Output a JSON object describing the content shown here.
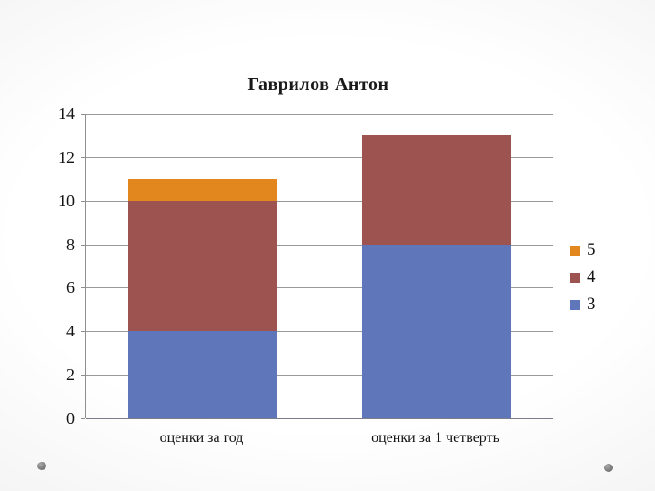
{
  "slide": {
    "title": "Гаврилов Антон"
  },
  "chart_data": {
    "type": "bar",
    "subtype": "stacked-vertical",
    "title": "Гаврилов Антон",
    "categories": [
      "оценки за год",
      "оценки за 1 четверть"
    ],
    "series": [
      {
        "name": "3",
        "color": "#6076ba",
        "values": [
          4,
          8
        ]
      },
      {
        "name": "4",
        "color": "#9d534f",
        "values": [
          6,
          5
        ]
      },
      {
        "name": "5",
        "color": "#e2861e",
        "values": [
          1,
          0
        ]
      }
    ],
    "bar_totals": [
      11,
      13
    ],
    "xlabel": "",
    "ylabel": "",
    "ylim": [
      0,
      14
    ],
    "yticks": [
      0,
      2,
      4,
      6,
      8,
      10,
      12,
      14
    ],
    "grid": true,
    "legend_position": "right",
    "legend_items": [
      {
        "label": "5",
        "color": "#e2861e"
      },
      {
        "label": "4",
        "color": "#9d534f"
      },
      {
        "label": "3",
        "color": "#6076ba"
      }
    ],
    "colors": {
      "gridline": "#9a9a9a",
      "axis_text": "#141414",
      "title_text": "#1a1a1a"
    }
  }
}
